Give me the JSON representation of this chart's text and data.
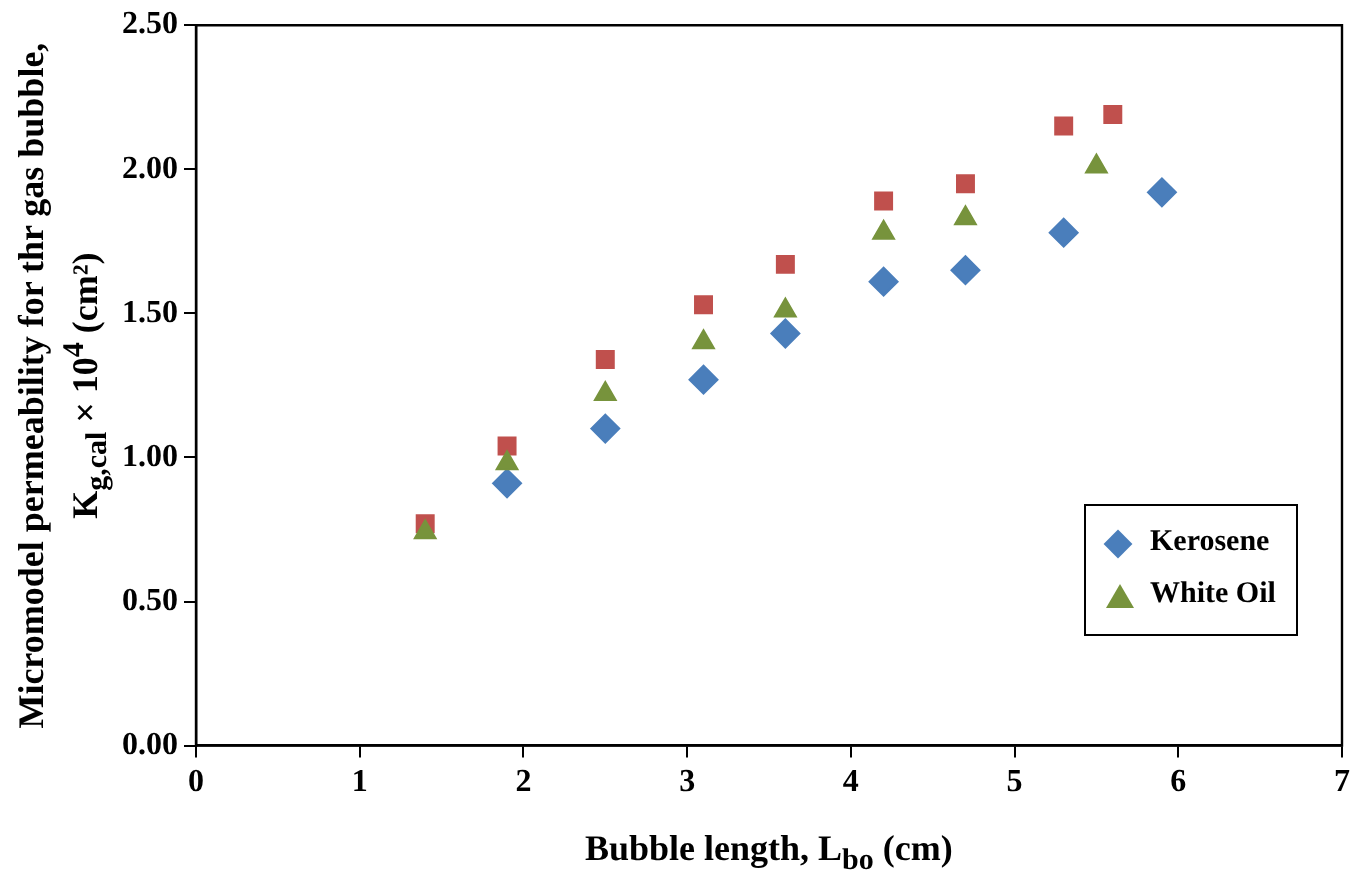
{
  "chart_data": {
    "type": "scatter",
    "xlabel": "Bubble length, L$_{bo}$ (cm)",
    "ylabel": "Micromodel permeability for thr gas bubble, K$_{g,cal}$ × 10$^{4}$ (cm²)",
    "xlim": [
      0,
      7
    ],
    "xticks": [
      0,
      1,
      2,
      3,
      4,
      5,
      6,
      7
    ],
    "ylim": [
      0,
      2.5
    ],
    "yticks": [
      {
        "value": 0,
        "label": "0.00"
      },
      {
        "value": 0.5,
        "label": "0.50"
      },
      {
        "value": 1,
        "label": "1.00"
      },
      {
        "value": 1.5,
        "label": "1.50"
      },
      {
        "value": 2,
        "label": "2.00"
      },
      {
        "value": 2.5,
        "label": "2.50"
      }
    ],
    "grid": false,
    "legend": "bottom right",
    "series": [
      {
        "name": "Kerosene",
        "color": "#4a7ebb",
        "marker": "diamond",
        "x": [
          1.9,
          2.5,
          3.1,
          3.6,
          4.2,
          4.7,
          5.3,
          5.9
        ],
        "values": [
          0.91,
          1.1,
          1.27,
          1.43,
          1.61,
          1.65,
          1.78,
          1.92
        ]
      },
      {
        "color": "#c0504d",
        "marker": "square",
        "x": [
          1.4,
          1.9,
          2.5,
          3.1,
          3.6,
          4.2,
          4.7,
          5.3,
          5.6
        ],
        "values": [
          0.77,
          1.04,
          1.34,
          1.53,
          1.67,
          1.89,
          1.95,
          2.15,
          2.19
        ]
      },
      {
        "name": "White Oil",
        "color": "#77933c",
        "marker": "triangle",
        "x": [
          1.4,
          1.9,
          2.5,
          3.1,
          3.6,
          4.2,
          4.7,
          5.5
        ],
        "values": [
          0.74,
          0.98,
          1.22,
          1.4,
          1.51,
          1.78,
          1.83,
          2.01
        ]
      }
    ]
  }
}
